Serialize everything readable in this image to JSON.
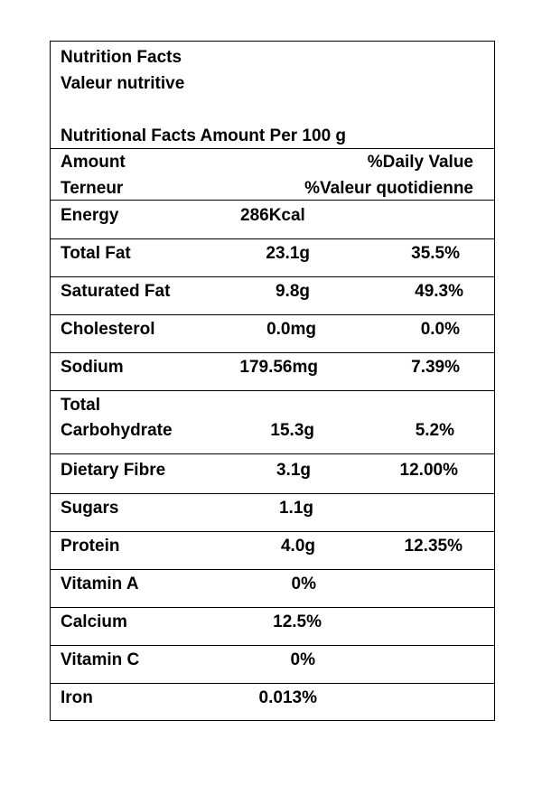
{
  "header": {
    "title_en": "Nutrition Facts",
    "title_fr": "Valeur nutritive",
    "serving": "Nutritional Facts Amount Per 100 g"
  },
  "columns": {
    "amount_en": "Amount",
    "amount_fr": "Terneur",
    "dv_en": "%Daily Value",
    "dv_fr": "%Valeur quotidienne"
  },
  "rows": [
    {
      "name": "Energy",
      "amount": "286Kcal",
      "dv": ""
    },
    {
      "name": "Total Fat",
      "amount": "23.1g",
      "dv": "35.5%"
    },
    {
      "name": "Saturated Fat",
      "amount": "9.8g",
      "dv": "49.3%"
    },
    {
      "name": "Cholesterol",
      "amount": "0.0mg",
      "dv": "0.0%"
    },
    {
      "name": "Sodium",
      "amount": "179.56mg",
      "dv": "7.39%"
    },
    {
      "name": "Total",
      "name2": "Carbohydrate",
      "amount": "15.3g",
      "dv": "5.2%"
    },
    {
      "name": "Dietary Fibre",
      "amount": "3.1g",
      "dv": "12.00%"
    },
    {
      "name": "Sugars",
      "amount": "1.1g",
      "dv": ""
    },
    {
      "name": "Protein",
      "amount": "4.0g",
      "dv": "12.35%"
    },
    {
      "name": "Vitamin A",
      "amount": "0%",
      "dv": ""
    },
    {
      "name": "Calcium",
      "amount": "12.5%",
      "dv": ""
    },
    {
      "name": "Vitamin C",
      "amount": "0%",
      "dv": ""
    },
    {
      "name": "Iron",
      "amount": "0.013%",
      "dv": ""
    }
  ]
}
